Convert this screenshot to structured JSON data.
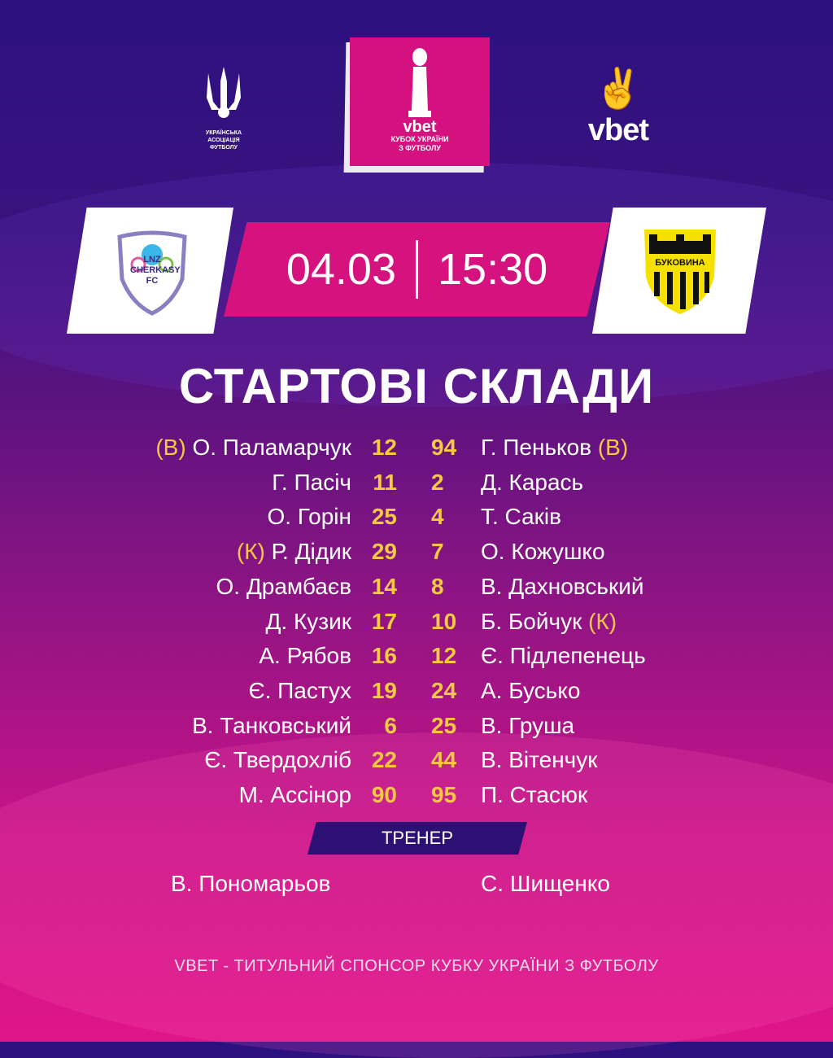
{
  "header": {
    "federation_logo_text": "УКРАЇНСЬКА АСОЦІАЦІЯ ФУТБОЛУ",
    "cup_logo": {
      "brand": "vbet",
      "line1": "КУБОК УКРАЇНИ",
      "line2": "З ФУТБОЛУ"
    },
    "sponsor_logo": "vbet"
  },
  "match": {
    "home_logo_text": "LNZ CHERKASY FC",
    "away_logo_text": "БУКОВИНА",
    "date": "04.03",
    "time": "15:30"
  },
  "title": "СТАРТОВІ СКЛАДИ",
  "home_lineup": [
    {
      "tag": "(В)",
      "name": "О. Паламарчук",
      "number": "12"
    },
    {
      "tag": "",
      "name": "Г. Пасіч",
      "number": "11"
    },
    {
      "tag": "",
      "name": "О. Горін",
      "number": "25"
    },
    {
      "tag": "(К)",
      "name": "Р. Дідик",
      "number": "29"
    },
    {
      "tag": "",
      "name": "О. Драмбаєв",
      "number": "14"
    },
    {
      "tag": "",
      "name": "Д. Кузик",
      "number": "17"
    },
    {
      "tag": "",
      "name": "А. Рябов",
      "number": "16"
    },
    {
      "tag": "",
      "name": "Є. Пастух",
      "number": "19"
    },
    {
      "tag": "",
      "name": "В. Танковський",
      "number": "6"
    },
    {
      "tag": "",
      "name": "Є. Твердохліб",
      "number": "22"
    },
    {
      "tag": "",
      "name": "М. Ассінор",
      "number": "90"
    }
  ],
  "away_lineup": [
    {
      "number": "94",
      "name": "Г. Пеньков",
      "tag": "(В)"
    },
    {
      "number": "2",
      "name": "Д. Карась",
      "tag": ""
    },
    {
      "number": "4",
      "name": "Т. Саків",
      "tag": ""
    },
    {
      "number": "7",
      "name": "О. Кожушко",
      "tag": ""
    },
    {
      "number": "8",
      "name": "В. Дахновський",
      "tag": ""
    },
    {
      "number": "10",
      "name": "Б. Бойчук",
      "tag": "(К)"
    },
    {
      "number": "12",
      "name": "Є. Підлепенець",
      "tag": ""
    },
    {
      "number": "24",
      "name": "А. Бусько",
      "tag": ""
    },
    {
      "number": "25",
      "name": "В. Груша",
      "tag": ""
    },
    {
      "number": "44",
      "name": "В. Вітенчук",
      "tag": ""
    },
    {
      "number": "95",
      "name": "П. Стасюк",
      "tag": ""
    }
  ],
  "coach": {
    "label": "ТРЕНЕР",
    "home": "В. Пономарьов",
    "away": "С. Шищенко"
  },
  "footer": "VBET - ТИТУЛЬНИЙ СПОНСОР КУБКУ УКРАЇНИ З ФУТБОЛУ",
  "colors": {
    "accent_yellow": "#f7c844",
    "pink": "#d6127f",
    "purple": "#2c1180"
  }
}
